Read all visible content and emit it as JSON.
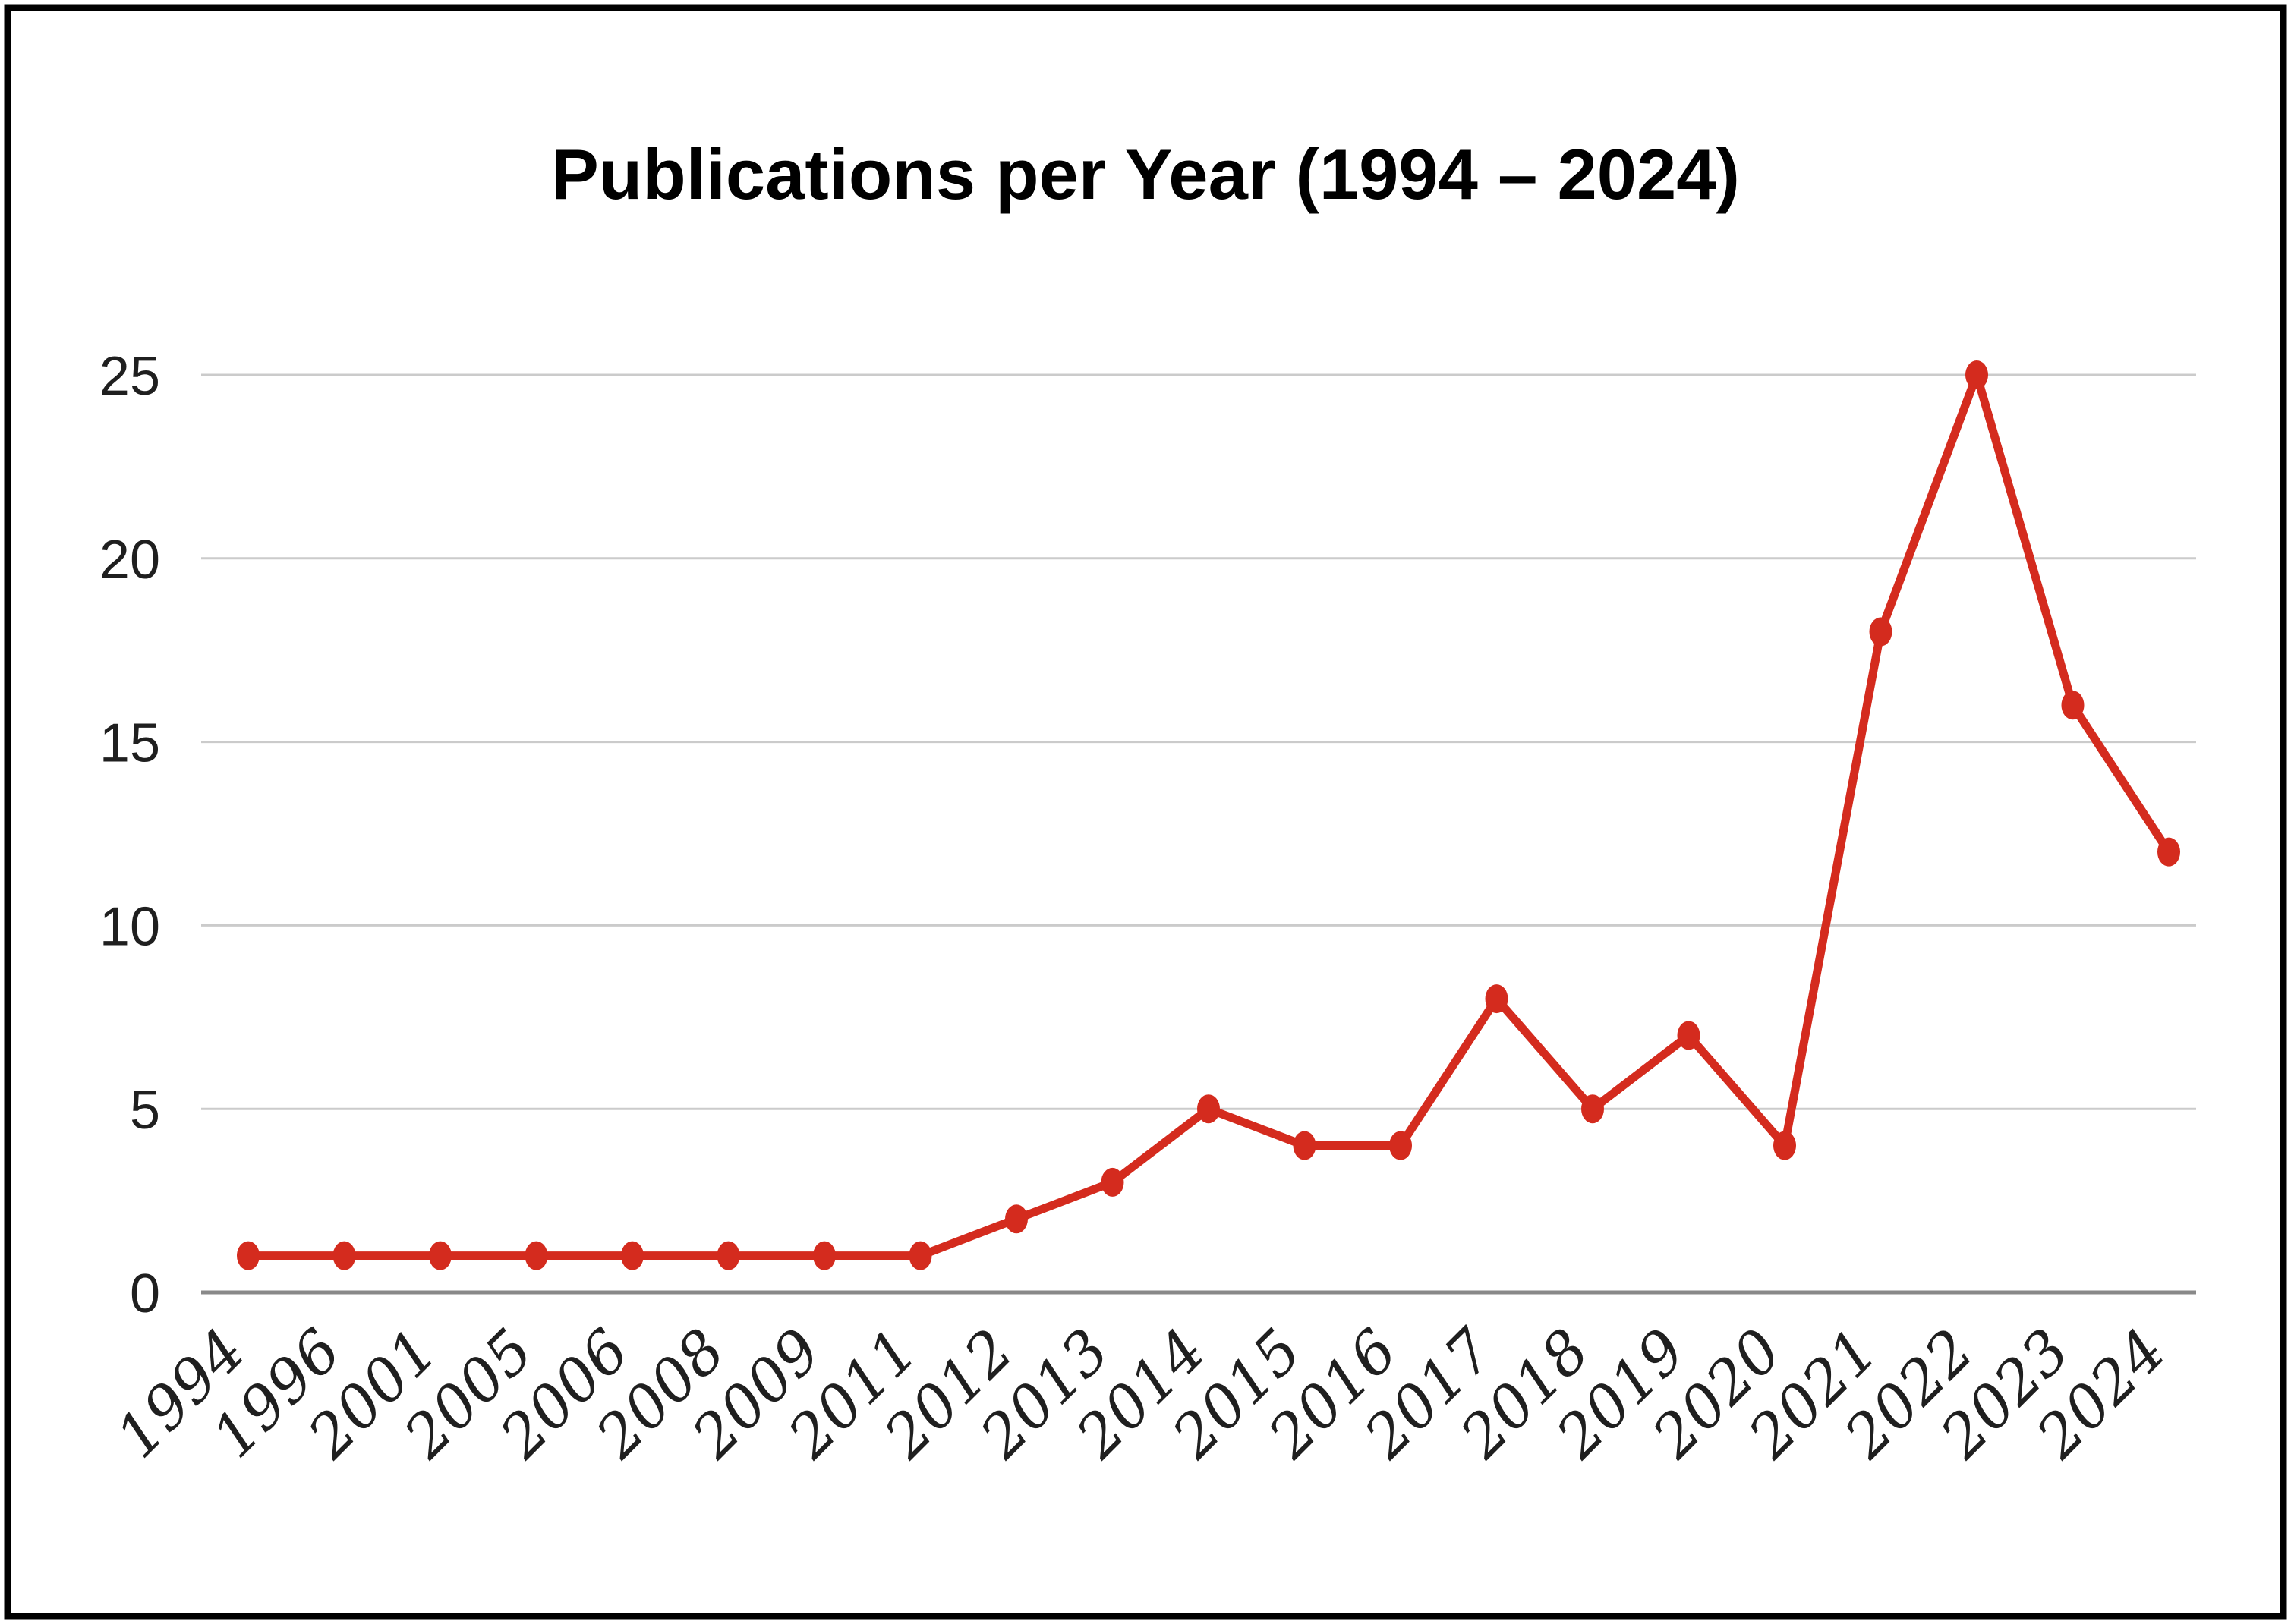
{
  "chart_data": {
    "type": "line",
    "title": "Publications per Year (1994 – 2024)",
    "categories": [
      "1994",
      "1996",
      "2001",
      "2005",
      "2006",
      "2008",
      "2009",
      "2011",
      "2012",
      "2013",
      "2014",
      "2015",
      "2016",
      "2017",
      "2018",
      "2019",
      "2020",
      "2021",
      "2022",
      "2023",
      "2024"
    ],
    "series": [
      {
        "name": "Publications",
        "values": [
          1,
          1,
          1,
          1,
          1,
          1,
          1,
          1,
          2,
          3,
          5,
          4,
          4,
          8,
          5,
          7,
          4,
          18,
          25,
          16,
          12
        ]
      }
    ],
    "xlabel": "",
    "ylabel": "",
    "ylim": [
      0,
      25
    ],
    "yticks": [
      0,
      5,
      10,
      15,
      20,
      25
    ],
    "grid": "horizontal",
    "legend": "none",
    "x_tick_rotation_deg": 45,
    "marker": "dot",
    "colors": {
      "line": "#d42b1e",
      "marker": "#d42b1e",
      "gridline": "#cbcbcb",
      "axis_line": "#898989",
      "title": "#000000",
      "tick_labels": "#1f1f1f",
      "border": "#000000",
      "background": "#ffffff"
    }
  }
}
